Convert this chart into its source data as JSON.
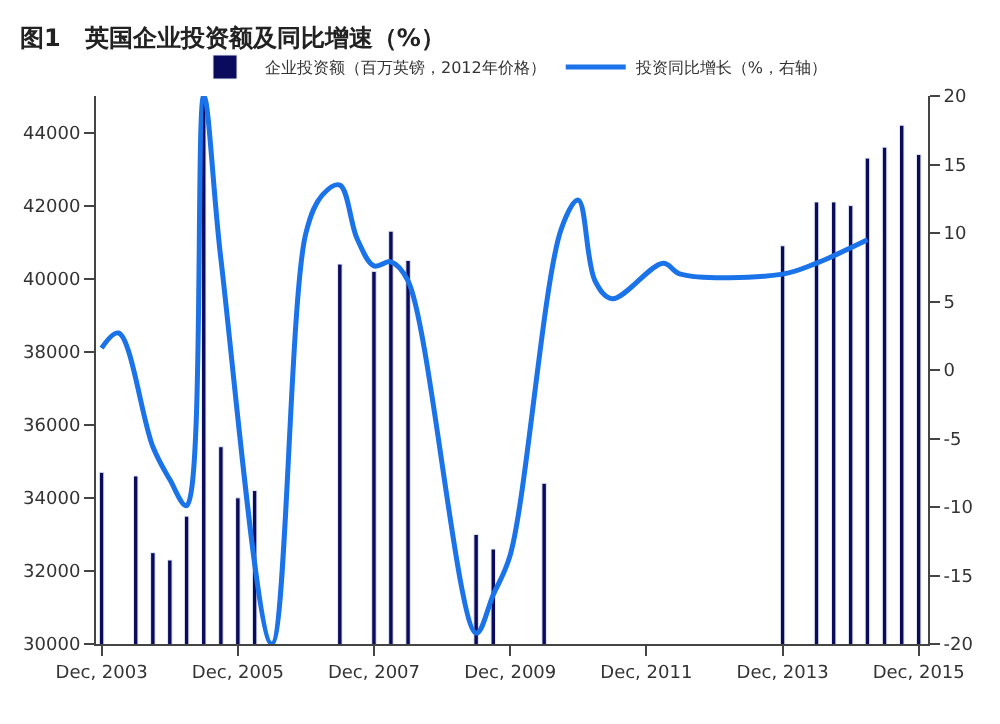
{
  "chart_data": {
    "type": "bar",
    "title": "图1　英国企业投资额及同比增速（%）",
    "x": [
      "2003-12",
      "2004-03",
      "2004-06",
      "2004-09",
      "2004-12",
      "2005-03",
      "2005-06",
      "2005-09",
      "2005-12",
      "2006-03",
      "2006-06",
      "2006-09",
      "2006-12",
      "2007-03",
      "2007-06",
      "2007-09",
      "2007-12",
      "2008-03",
      "2008-06",
      "2008-09",
      "2008-12",
      "2009-03",
      "2009-06",
      "2009-09",
      "2009-12",
      "2010-03",
      "2010-06",
      "2010-09",
      "2010-12",
      "2011-03",
      "2011-06",
      "2011-09",
      "2011-12",
      "2012-03",
      "2012-06",
      "2012-09",
      "2012-12",
      "2013-03",
      "2013-06",
      "2013-09",
      "2013-12",
      "2014-03",
      "2014-06",
      "2014-09",
      "2014-12",
      "2015-03",
      "2015-06",
      "2015-09",
      "2015-12"
    ],
    "series": [
      {
        "name": "企业投资额（百万英镑，2012年价格）",
        "color": "#0b0b5e",
        "values": [
          34700,
          null,
          34600,
          32500,
          32300,
          33500,
          44900,
          35400,
          34000,
          34200,
          null,
          null,
          null,
          null,
          40400,
          null,
          40200,
          41300,
          40500,
          null,
          null,
          null,
          33000,
          32600,
          null,
          null,
          34400,
          null,
          null,
          null,
          null,
          null,
          null,
          null,
          null,
          null,
          null,
          null,
          null,
          null,
          40900,
          null,
          42100,
          42100,
          42000,
          43300,
          43600,
          44200,
          43400
        ]
      },
      {
        "name": "投资同比增长（%，右轴）",
        "type": "line",
        "axis": "y2",
        "color": "#1a73e8",
        "values": [
          1.6,
          2.7,
          null,
          -5.6,
          -8,
          -9.9,
          20,
          8.1,
          null,
          null,
          -20,
          null,
          10,
          12.8,
          13.5,
          9.6,
          7.6,
          7.9,
          6.5,
          null,
          null,
          null,
          -19.2,
          -16.4,
          -13.5,
          null,
          null,
          10.3,
          12.4,
          6.5,
          5.2,
          null,
          null,
          7.8,
          7,
          null,
          null,
          null,
          null,
          null,
          7,
          null,
          7.8,
          null,
          null,
          9.5,
          null,
          null,
          null
        ]
      }
    ],
    "xlim": [
      "2003-11-01",
      "2016-01-20"
    ],
    "xticks": [
      {
        "value": "2003-12",
        "label": "Dec, 2003"
      },
      {
        "value": "2005-12",
        "label": "Dec, 2005"
      },
      {
        "value": "2007-12",
        "label": "Dec, 2007"
      },
      {
        "value": "2009-12",
        "label": "Dec, 2009"
      },
      {
        "value": "2011-12",
        "label": "Dec, 2011"
      },
      {
        "value": "2013-12",
        "label": "Dec, 2013"
      },
      {
        "value": "2015-12",
        "label": "Dec, 2015"
      }
    ],
    "ylim": [
      30000,
      45000
    ],
    "yticks": [
      30000,
      32000,
      34000,
      36000,
      38000,
      40000,
      42000,
      44000
    ],
    "y2lim": [
      -20,
      20
    ],
    "y2ticks": [
      -20,
      -15,
      -10,
      -5,
      0,
      5,
      10,
      15,
      20
    ],
    "legend": "top"
  }
}
